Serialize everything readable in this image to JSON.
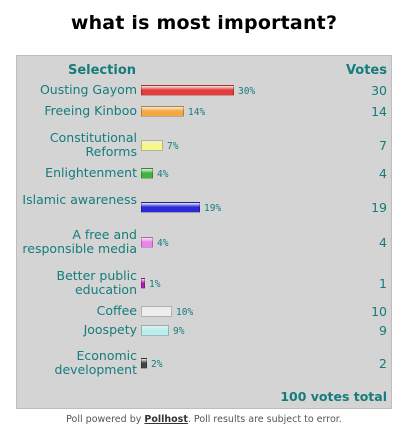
{
  "title": "what is most important?",
  "header": {
    "selection": "Selection",
    "votes": "Votes"
  },
  "options": [
    {
      "label": "Ousting Gayom",
      "pct": "30%",
      "votes": "30",
      "share": 0.3,
      "color": "#e83a3a"
    },
    {
      "label": "Freeing Kinboo",
      "pct": "14%",
      "votes": "14",
      "share": 0.14,
      "color": "#f5a841"
    },
    {
      "label": "Constitutional Reforms",
      "pct": "7%",
      "votes": "7",
      "share": 0.07,
      "color": "#f7f78a"
    },
    {
      "label": "Enlightenment",
      "pct": "4%",
      "votes": "4",
      "share": 0.04,
      "color": "#3fb53f"
    },
    {
      "label": "Islamic awareness",
      "pct": "19%",
      "votes": "19",
      "share": 0.19,
      "color": "#2a2ad6"
    },
    {
      "label": "A free and responsible media",
      "pct": "4%",
      "votes": "4",
      "share": 0.04,
      "color": "#ee80ee"
    },
    {
      "label": "Better public education",
      "pct": "1%",
      "votes": "1",
      "share": 0.01,
      "color": "#b01fb0"
    },
    {
      "label": "Coffee",
      "pct": "10%",
      "votes": "10",
      "share": 0.1,
      "color": "#eeeeee"
    },
    {
      "label": "Joospety",
      "pct": "9%",
      "votes": "9",
      "share": 0.09,
      "color": "#b8f0f0"
    },
    {
      "label": "Economic development",
      "pct": "2%",
      "votes": "2",
      "share": 0.02,
      "color": "#444444"
    }
  ],
  "total": "100 votes total",
  "footer": {
    "prefix": "Poll powered by ",
    "link": "Pollhost",
    "suffix": ". Poll results are subject to error."
  }
}
